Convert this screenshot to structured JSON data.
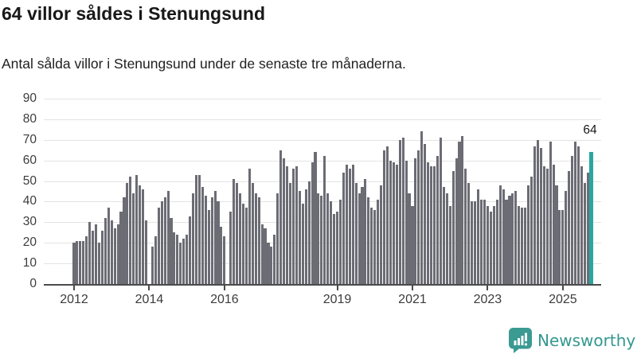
{
  "title": "64 villor såldes i Stenungsund",
  "subtitle": "Antal sålda villor i Stenungsund under de senaste tre månaderna.",
  "footer": {
    "brand": "Newsworthy"
  },
  "chart_data": {
    "type": "bar",
    "title": "64 villor såldes i Stenungsund",
    "subtitle": "Antal sålda villor i Stenungsund under de senaste tre månaderna.",
    "x_start_month": "2012-01",
    "x_end_month": "2025-10",
    "x_frequency": "monthly",
    "values": [
      20,
      21,
      21,
      21,
      23,
      30,
      26,
      29,
      20,
      26,
      32,
      37,
      31,
      27,
      29,
      35,
      42,
      49,
      52,
      44,
      53,
      48,
      46,
      31,
      0,
      18,
      23,
      37,
      40,
      42,
      45,
      32,
      25,
      24,
      20,
      22,
      24,
      33,
      44,
      53,
      53,
      47,
      43,
      36,
      42,
      45,
      40,
      28,
      23,
      0,
      35,
      51,
      49,
      44,
      39,
      37,
      56,
      49,
      44,
      42,
      29,
      27,
      20,
      18,
      24,
      44,
      65,
      61,
      57,
      49,
      56,
      57,
      45,
      39,
      46,
      50,
      59,
      64,
      44,
      43,
      62,
      44,
      40,
      34,
      35,
      41,
      54,
      58,
      56,
      58,
      49,
      44,
      47,
      51,
      42,
      37,
      36,
      41,
      48,
      65,
      67,
      60,
      59,
      58,
      70,
      71,
      60,
      44,
      38,
      61,
      65,
      74,
      68,
      59,
      57,
      57,
      62,
      71,
      47,
      44,
      38,
      55,
      61,
      69,
      72,
      56,
      49,
      40,
      40,
      46,
      41,
      41,
      38,
      35,
      38,
      41,
      48,
      46,
      41,
      43,
      44,
      45,
      38,
      37,
      37,
      48,
      52,
      67,
      70,
      66,
      57,
      56,
      69,
      58,
      48,
      36,
      36,
      45,
      55,
      62,
      69,
      67,
      57,
      49,
      54,
      64
    ],
    "highlight_last": true,
    "highlight_label": "64",
    "highlight_value": 64,
    "bar_color": "#6c6c75",
    "highlight_color": "#2aa6a0",
    "y_ticks": [
      0,
      10,
      20,
      30,
      40,
      50,
      60,
      70,
      80,
      90
    ],
    "ylim": [
      0,
      90
    ],
    "x_ticks": [
      {
        "label": "2012",
        "year": 2012
      },
      {
        "label": "2014",
        "year": 2014
      },
      {
        "label": "2016",
        "year": 2016
      },
      {
        "label": "2019",
        "year": 2019
      },
      {
        "label": "2021",
        "year": 2021
      },
      {
        "label": "2023",
        "year": 2023
      },
      {
        "label": "2025",
        "year": 2025
      }
    ],
    "grid": "horizontal",
    "legend": "none",
    "xlabel": "",
    "ylabel": ""
  },
  "brand_colors": {
    "logo_teal": "#3b9a92",
    "text_teal": "#33988f"
  }
}
